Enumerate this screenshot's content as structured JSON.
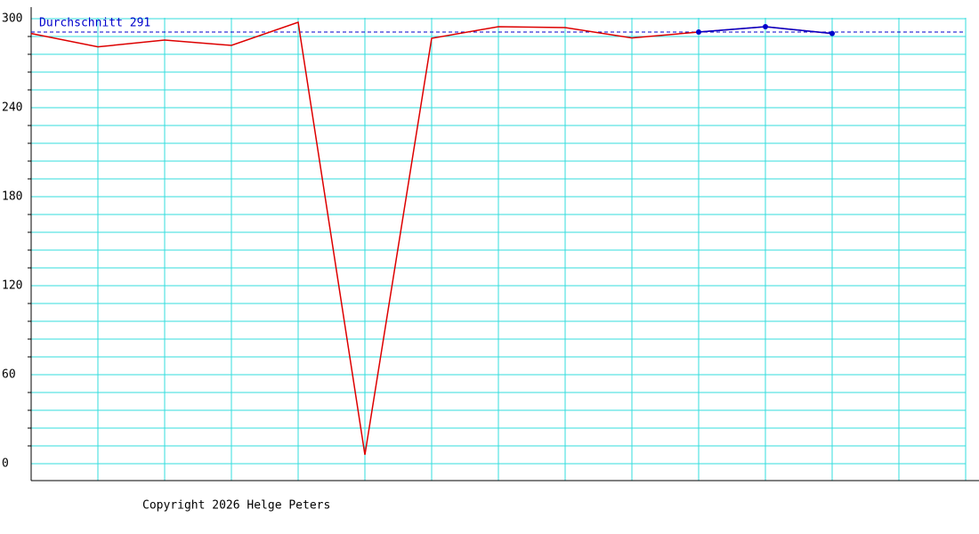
{
  "chart_data": {
    "type": "line",
    "x": [
      0,
      1,
      2,
      3,
      4,
      5,
      6,
      7,
      8,
      9,
      10,
      11,
      12
    ],
    "series": [
      {
        "color": "#dd0000",
        "values": [
          290,
          281,
          285.6,
          282,
          297.6,
          6,
          286.8,
          294.6,
          294,
          287,
          291,
          294.6,
          290
        ]
      },
      {
        "color": "#0000cc",
        "values": [
          null,
          null,
          null,
          null,
          null,
          null,
          null,
          null,
          null,
          null,
          291,
          294.6,
          290
        ],
        "markers": true
      }
    ],
    "xlim": [
      0,
      14.2
    ],
    "xgrid": [
      1,
      2,
      3,
      4,
      5,
      6,
      7,
      8,
      9,
      10,
      11,
      12,
      13,
      14
    ],
    "ylim": [
      -11.4,
      307.8
    ],
    "yticks": [
      0,
      60,
      120,
      180,
      240,
      300
    ],
    "minor_yticks": [
      12,
      24,
      36,
      48,
      72,
      84,
      96,
      108,
      132,
      144,
      156,
      168,
      192,
      204,
      216,
      228,
      252,
      264,
      276,
      288
    ],
    "grid": true,
    "grid_color": "#33dddd",
    "average": {
      "value": 291,
      "label": "Durchschnitt 291",
      "color": "#0000cc"
    },
    "footer": "Copyright 2026 Helge Peters"
  }
}
